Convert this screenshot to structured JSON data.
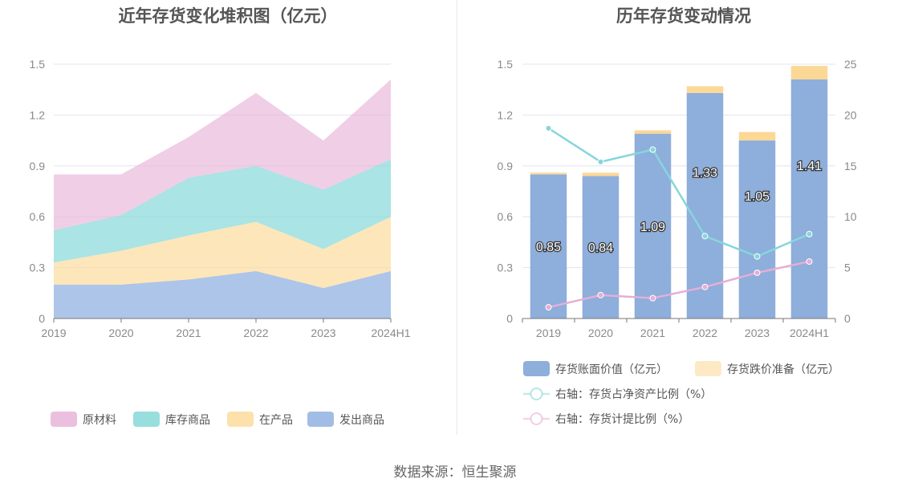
{
  "source": "数据来源：恒生聚源",
  "colors": {
    "raw_material": "#e8b4d8",
    "inventory_goods": "#86d8d8",
    "wip": "#fcdc9c",
    "shipped": "#92b2e0",
    "book_value": "#8eaedb",
    "impairment": "#fcd896",
    "ratio_net_asset": "#86d6dc",
    "ratio_provision": "#e6aed6",
    "grid": "#e0e4f0",
    "axis": "#777777"
  },
  "chart_data": [
    {
      "type": "area",
      "stacked": true,
      "title": "近年存货变化堆积图（亿元）",
      "categories": [
        "2019",
        "2020",
        "2021",
        "2022",
        "2023",
        "2024H1"
      ],
      "ylim": [
        0,
        1.5
      ],
      "yticks": [
        "0",
        "0.3",
        "0.6",
        "0.9",
        "1.2",
        "1.5"
      ],
      "grid": true,
      "legend_position": "bottom",
      "series": [
        {
          "name": "发出商品",
          "color_key": "shipped",
          "values": [
            0.2,
            0.2,
            0.23,
            0.28,
            0.18,
            0.28
          ]
        },
        {
          "name": "在产品",
          "color_key": "wip",
          "values": [
            0.13,
            0.2,
            0.26,
            0.29,
            0.23,
            0.32
          ]
        },
        {
          "name": "库存商品",
          "color_key": "inventory_goods",
          "values": [
            0.19,
            0.21,
            0.34,
            0.33,
            0.35,
            0.34
          ]
        },
        {
          "name": "原材料",
          "color_key": "raw_material",
          "values": [
            0.33,
            0.24,
            0.24,
            0.43,
            0.29,
            0.47
          ]
        }
      ],
      "legend_order": [
        "原材料",
        "库存商品",
        "在产品",
        "发出商品"
      ]
    },
    {
      "type": "bar",
      "stacked": true,
      "title": "历年存货变动情况",
      "categories": [
        "2019",
        "2020",
        "2021",
        "2022",
        "2023",
        "2024H1"
      ],
      "ylim": [
        0,
        1.5
      ],
      "yticks": [
        "0",
        "0.3",
        "0.6",
        "0.9",
        "1.2",
        "1.5"
      ],
      "y2lim": [
        0,
        25
      ],
      "y2ticks": [
        "0",
        "5",
        "10",
        "15",
        "20",
        "25"
      ],
      "grid": true,
      "legend_position": "bottom",
      "series": [
        {
          "name": "存货账面价值（亿元）",
          "kind": "bar",
          "color_key": "book_value",
          "values": [
            0.85,
            0.84,
            1.09,
            1.33,
            1.05,
            1.41
          ],
          "labels": [
            "0.85",
            "0.84",
            "1.09",
            "1.33",
            "1.05",
            "1.41"
          ]
        },
        {
          "name": "存货跌价准备（亿元）",
          "kind": "bar",
          "color_key": "impairment",
          "values": [
            0.01,
            0.02,
            0.02,
            0.04,
            0.05,
            0.08
          ]
        },
        {
          "name": "右轴：存货占净资产比例（%）",
          "kind": "line",
          "axis": "right",
          "color_key": "ratio_net_asset",
          "values": [
            18.7,
            15.4,
            16.6,
            8.1,
            6.1,
            8.3
          ]
        },
        {
          "name": "右轴：存货计提比例（%）",
          "kind": "line",
          "axis": "right",
          "color_key": "ratio_provision",
          "values": [
            1.1,
            2.3,
            2.0,
            3.1,
            4.5,
            5.6
          ]
        }
      ]
    }
  ]
}
